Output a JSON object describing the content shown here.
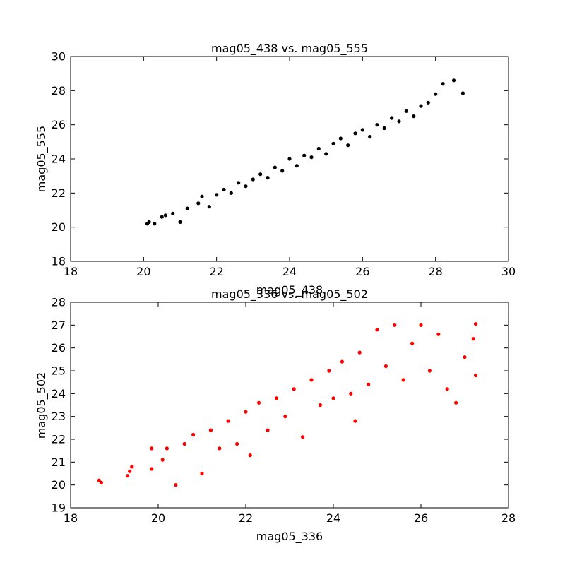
{
  "chart_data": [
    {
      "type": "scatter",
      "title": "mag05_438 vs. mag05_555",
      "xlabel": "mag05_438",
      "ylabel": "mag05_555",
      "xlim": [
        18,
        30
      ],
      "ylim": [
        18,
        30
      ],
      "xticks": [
        "18",
        "20",
        "22",
        "24",
        "26",
        "28",
        "30"
      ],
      "yticks": [
        "18",
        "20",
        "22",
        "24",
        "26",
        "28",
        "30"
      ],
      "grid": false,
      "legend": "none",
      "color": "#000000",
      "series": [
        {
          "points": [
            [
              20.1,
              20.2
            ],
            [
              20.15,
              20.3
            ],
            [
              20.3,
              20.2
            ],
            [
              20.5,
              20.6
            ],
            [
              20.6,
              20.7
            ],
            [
              20.8,
              20.8
            ],
            [
              21.0,
              20.3
            ],
            [
              21.2,
              21.1
            ],
            [
              21.5,
              21.4
            ],
            [
              21.6,
              21.8
            ],
            [
              21.8,
              21.2
            ],
            [
              22.0,
              21.9
            ],
            [
              22.2,
              22.2
            ],
            [
              22.4,
              22.0
            ],
            [
              22.6,
              22.6
            ],
            [
              22.8,
              22.4
            ],
            [
              23.0,
              22.8
            ],
            [
              23.2,
              23.1
            ],
            [
              23.4,
              22.9
            ],
            [
              23.6,
              23.5
            ],
            [
              23.8,
              23.3
            ],
            [
              24.0,
              24.0
            ],
            [
              24.2,
              23.6
            ],
            [
              24.4,
              24.2
            ],
            [
              24.6,
              24.1
            ],
            [
              24.8,
              24.6
            ],
            [
              25.0,
              24.3
            ],
            [
              25.2,
              24.9
            ],
            [
              25.4,
              25.2
            ],
            [
              25.6,
              24.8
            ],
            [
              25.8,
              25.5
            ],
            [
              26.0,
              25.7
            ],
            [
              26.2,
              25.3
            ],
            [
              26.4,
              26.0
            ],
            [
              26.6,
              25.8
            ],
            [
              26.8,
              26.4
            ],
            [
              27.0,
              26.2
            ],
            [
              27.2,
              26.8
            ],
            [
              27.4,
              26.5
            ],
            [
              27.6,
              27.1
            ],
            [
              27.8,
              27.3
            ],
            [
              28.0,
              27.8
            ],
            [
              28.2,
              28.4
            ],
            [
              28.5,
              28.6
            ],
            [
              28.75,
              27.85
            ]
          ]
        }
      ]
    },
    {
      "type": "scatter",
      "title": "mag05_336 vs. mag05_502",
      "xlabel": "mag05_336",
      "ylabel": "mag05_502",
      "xlim": [
        18,
        28
      ],
      "ylim": [
        19,
        28
      ],
      "xticks": [
        "18",
        "20",
        "22",
        "24",
        "26",
        "28"
      ],
      "yticks": [
        "19",
        "20",
        "21",
        "22",
        "23",
        "24",
        "25",
        "26",
        "27",
        "28"
      ],
      "grid": false,
      "legend": "none",
      "color": "#ff0000",
      "series": [
        {
          "points": [
            [
              18.65,
              20.2
            ],
            [
              18.7,
              20.1
            ],
            [
              19.3,
              20.4
            ],
            [
              19.35,
              20.6
            ],
            [
              19.4,
              20.8
            ],
            [
              19.85,
              21.6
            ],
            [
              19.85,
              20.7
            ],
            [
              20.1,
              21.1
            ],
            [
              20.2,
              21.6
            ],
            [
              20.4,
              20.0
            ],
            [
              20.6,
              21.8
            ],
            [
              20.8,
              22.2
            ],
            [
              21.0,
              20.5
            ],
            [
              21.2,
              22.4
            ],
            [
              21.4,
              21.6
            ],
            [
              21.6,
              22.8
            ],
            [
              21.8,
              21.8
            ],
            [
              22.0,
              23.2
            ],
            [
              22.1,
              21.3
            ],
            [
              22.3,
              23.6
            ],
            [
              22.5,
              22.4
            ],
            [
              22.7,
              23.8
            ],
            [
              22.9,
              23.0
            ],
            [
              23.1,
              24.2
            ],
            [
              23.3,
              22.1
            ],
            [
              23.5,
              24.6
            ],
            [
              23.7,
              23.5
            ],
            [
              23.9,
              25.0
            ],
            [
              24.0,
              23.8
            ],
            [
              24.2,
              25.4
            ],
            [
              24.4,
              24.0
            ],
            [
              24.5,
              22.8
            ],
            [
              24.6,
              25.8
            ],
            [
              24.8,
              24.4
            ],
            [
              25.0,
              26.8
            ],
            [
              25.2,
              25.2
            ],
            [
              25.4,
              27.0
            ],
            [
              25.6,
              24.6
            ],
            [
              25.8,
              26.2
            ],
            [
              26.0,
              27.0
            ],
            [
              26.2,
              25.0
            ],
            [
              26.4,
              26.6
            ],
            [
              26.6,
              24.2
            ],
            [
              26.8,
              23.6
            ],
            [
              27.0,
              25.6
            ],
            [
              27.2,
              26.4
            ],
            [
              27.25,
              27.05
            ],
            [
              27.25,
              24.8
            ]
          ]
        }
      ]
    }
  ]
}
